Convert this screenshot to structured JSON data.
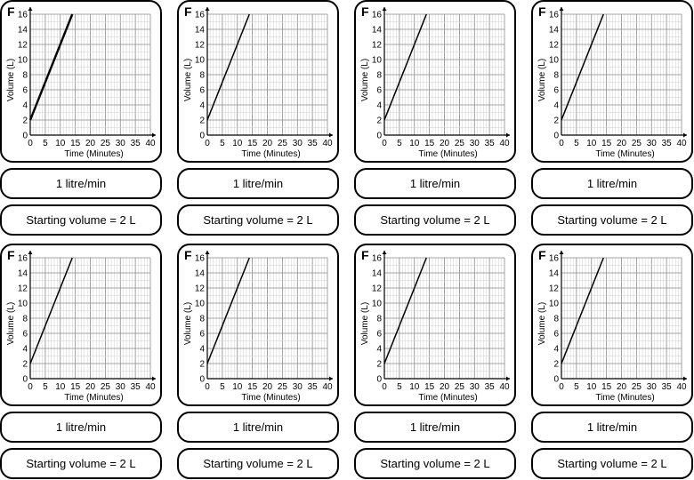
{
  "cards": [
    {
      "letter": "F",
      "rate_label": "1 litre/min",
      "start_label": "Starting volume = 2 L"
    },
    {
      "letter": "F",
      "rate_label": "1 litre/min",
      "start_label": "Starting volume = 2 L"
    },
    {
      "letter": "F",
      "rate_label": "1 litre/min",
      "start_label": "Starting volume = 2 L"
    },
    {
      "letter": "F",
      "rate_label": "1 litre/min",
      "start_label": "Starting volume = 2 L"
    },
    {
      "letter": "F",
      "rate_label": "1 litre/min",
      "start_label": "Starting volume = 2 L"
    },
    {
      "letter": "F",
      "rate_label": "1 litre/min",
      "start_label": "Starting volume = 2 L"
    },
    {
      "letter": "F",
      "rate_label": "1 litre/min",
      "start_label": "Starting volume = 2 L"
    },
    {
      "letter": "F",
      "rate_label": "1 litre/min",
      "start_label": "Starting volume = 2 L"
    }
  ],
  "chart_data": {
    "type": "line",
    "xlabel": "Time (Minutes)",
    "ylabel": "Volume (L)",
    "xlim": [
      0,
      40
    ],
    "ylim": [
      0,
      16
    ],
    "x_ticks": [
      0,
      5,
      10,
      15,
      20,
      25,
      30,
      35,
      40
    ],
    "y_ticks": [
      0,
      2,
      4,
      6,
      8,
      10,
      12,
      14,
      16
    ],
    "grid": true,
    "series": [
      {
        "x": [
          0,
          14
        ],
        "y": [
          2,
          16
        ]
      }
    ]
  }
}
